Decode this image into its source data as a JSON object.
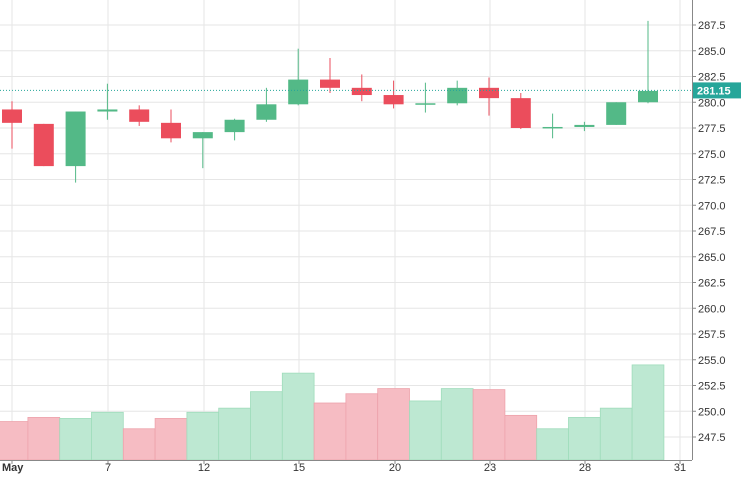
{
  "chart_data": {
    "type": "candlestick",
    "x_ticks": [
      {
        "day": 1,
        "label": "May"
      },
      {
        "day": 7,
        "label": "7"
      },
      {
        "day": 12,
        "label": "12"
      },
      {
        "day": 15,
        "label": "15"
      },
      {
        "day": 20,
        "label": "20"
      },
      {
        "day": 23,
        "label": "23"
      },
      {
        "day": 28,
        "label": "28"
      },
      {
        "day": 31,
        "label": "31"
      }
    ],
    "y_ticks": [
      "287.5",
      "285.0",
      "282.5",
      "280.0",
      "277.5",
      "275.0",
      "272.5",
      "270.0",
      "267.5",
      "265.0",
      "262.5",
      "260.0",
      "257.5",
      "255.0",
      "252.5",
      "250.0",
      "247.5"
    ],
    "ylim": [
      246.0,
      289.0
    ],
    "last_price": {
      "value": 281.15,
      "label": "281.15",
      "color": "#26a69a"
    },
    "colors": {
      "up": "#53b987",
      "down": "#eb4d5c",
      "up_volume": "#bde8d2",
      "down_volume": "#f6bcc3"
    },
    "candles": [
      {
        "date": "May 1",
        "open": 279.3,
        "high": 280.1,
        "low": 275.5,
        "close": 278.0
      },
      {
        "date": "May 2",
        "open": 277.9,
        "high": 277.9,
        "low": 273.8,
        "close": 273.8
      },
      {
        "date": "May 3",
        "open": 273.8,
        "high": 279.1,
        "low": 272.2,
        "close": 279.1
      },
      {
        "date": "May 6",
        "open": 279.1,
        "high": 281.8,
        "low": 278.3,
        "close": 279.3
      },
      {
        "date": "May 7",
        "open": 279.3,
        "high": 279.7,
        "low": 277.7,
        "close": 278.1
      },
      {
        "date": "May 8",
        "open": 278.0,
        "high": 279.3,
        "low": 276.1,
        "close": 276.5
      },
      {
        "date": "May 9",
        "open": 276.5,
        "high": 277.1,
        "low": 273.6,
        "close": 277.1
      },
      {
        "date": "May 10",
        "open": 277.1,
        "high": 278.4,
        "low": 276.3,
        "close": 278.3
      },
      {
        "date": "May 13",
        "open": 278.3,
        "high": 281.4,
        "low": 278.1,
        "close": 279.8
      },
      {
        "date": "May 14",
        "open": 279.8,
        "high": 285.2,
        "low": 279.7,
        "close": 282.2
      },
      {
        "date": "May 15",
        "open": 282.2,
        "high": 284.3,
        "low": 280.9,
        "close": 281.4
      },
      {
        "date": "May 16",
        "open": 281.4,
        "high": 282.7,
        "low": 280.1,
        "close": 280.7
      },
      {
        "date": "May 17",
        "open": 280.7,
        "high": 282.1,
        "low": 279.4,
        "close": 279.8
      },
      {
        "date": "May 20",
        "open": 279.8,
        "high": 281.9,
        "low": 279.0,
        "close": 279.9
      },
      {
        "date": "May 21",
        "open": 279.9,
        "high": 282.1,
        "low": 279.7,
        "close": 281.4
      },
      {
        "date": "May 22",
        "open": 281.4,
        "high": 282.4,
        "low": 278.7,
        "close": 280.4
      },
      {
        "date": "May 23",
        "open": 280.4,
        "high": 280.9,
        "low": 277.4,
        "close": 277.5
      },
      {
        "date": "May 24",
        "open": 277.6,
        "high": 278.9,
        "low": 276.5,
        "close": 277.6
      },
      {
        "date": "May 27",
        "open": 277.6,
        "high": 278.1,
        "low": 277.2,
        "close": 277.8
      },
      {
        "date": "May 28",
        "open": 277.8,
        "high": 280.0,
        "low": 277.8,
        "close": 280.0
      },
      {
        "date": "May 29",
        "open": 280.0,
        "high": 287.9,
        "low": 279.9,
        "close": 281.1
      }
    ],
    "volume": [
      249.0,
      249.4,
      249.3,
      249.9,
      248.3,
      249.3,
      249.9,
      250.3,
      251.9,
      253.7,
      250.8,
      251.7,
      252.2,
      251.0,
      252.2,
      252.1,
      249.6,
      248.3,
      249.4,
      250.3,
      254.5
    ],
    "grid": true,
    "price_axis": "right"
  }
}
